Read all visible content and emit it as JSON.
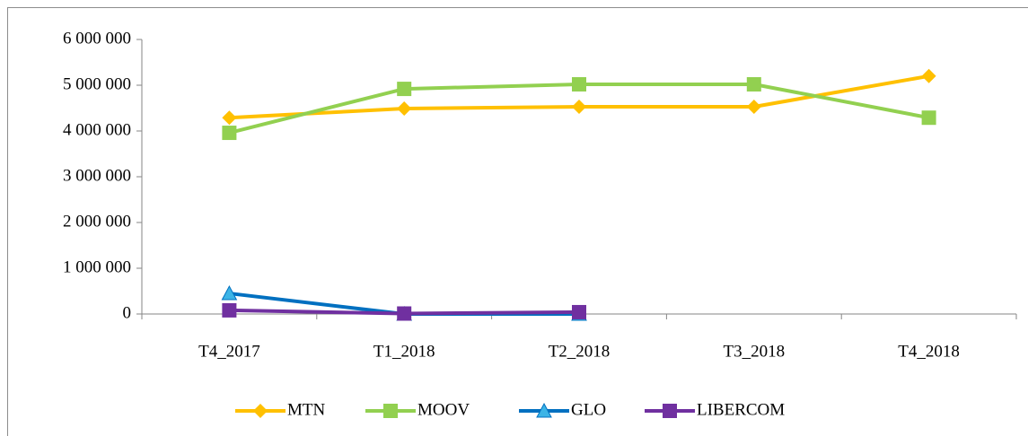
{
  "chart_data": {
    "type": "line",
    "categories": [
      "T4_2017",
      "T1_2018",
      "T2_2018",
      "T3_2018",
      "T4_2018"
    ],
    "series": [
      {
        "name": "MTN",
        "color": "#FFC000",
        "marker": "diamond",
        "marker_color": "#FFC000",
        "values": [
          4290000,
          4490000,
          4530000,
          4530000,
          5200000
        ]
      },
      {
        "name": "MOOV",
        "color": "#92D050",
        "marker": "square",
        "marker_color": "#92D050",
        "values": [
          3960000,
          4920000,
          5020000,
          5020000,
          4290000
        ]
      },
      {
        "name": "GLO",
        "color": "#0070C0",
        "marker": "triangle",
        "marker_color": "#3CB4E6",
        "values": [
          450000,
          0,
          0,
          null,
          null
        ]
      },
      {
        "name": "LIBERCOM",
        "color": "#7030A0",
        "marker": "square",
        "marker_color": "#7030A0",
        "values": [
          80000,
          10000,
          40000,
          null,
          null
        ]
      }
    ],
    "ylim": [
      0,
      6000000
    ],
    "yticks": [
      0,
      {
        "value": 1000000,
        "label": "1 000 000"
      },
      {
        "value": 2000000,
        "label": "2 000 000"
      },
      {
        "value": 3000000,
        "label": "3 000 000"
      },
      {
        "value": 4000000,
        "label": "4 000 000"
      },
      {
        "value": 5000000,
        "label": "5 000 000"
      },
      {
        "value": 6000000,
        "label": "6 000 000"
      }
    ],
    "grid": false,
    "legend": "bottom"
  }
}
